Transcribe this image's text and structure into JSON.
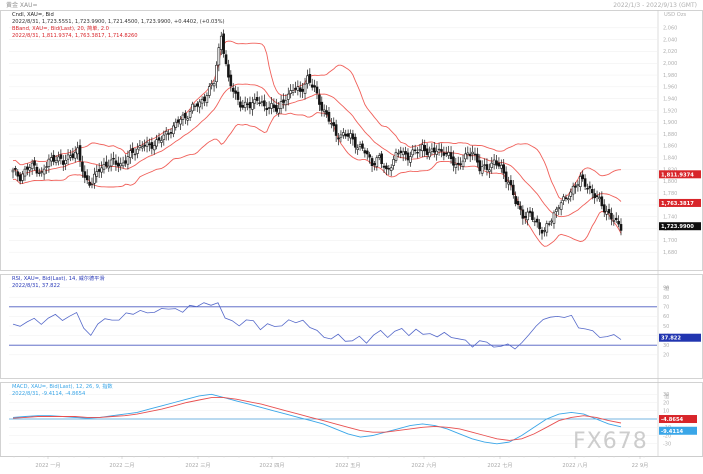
{
  "window": {
    "left_label": "黄金 XAU=",
    "right_label": "2022/1/3 - 2022/9/13 (GMT)"
  },
  "panels": {
    "price": {
      "header_line1": "Cndl, XAU=, Bid",
      "header_line2": "2022/8/31, 1,723.5551, 1,723.9900, 1,721.4500, 1,723.9900, +0.4402, (+0.03%)",
      "header_line3": "BBand, XAU=, Bid(Last), 20, 简单, 2.0",
      "header_line4": "2022/8/31, 1,811.9374, 1,763.3817, 1,714.8260",
      "axis_unit": "USD Ozs",
      "tags": [
        {
          "label": "1,811.9374",
          "value": 1811.9,
          "color": "#d8252a"
        },
        {
          "label": "1,763.3817",
          "value": 1763.4,
          "color": "#d8252a"
        },
        {
          "label": "1,723.9900",
          "value": 1723.99,
          "color": "#101010"
        }
      ]
    },
    "rsi": {
      "header_line1": "RSI, XAU=, Bid(Last), 14, 威尔德平滑",
      "header_line2": "2022/8/31, 37.822",
      "axis_unit": "值",
      "tag": {
        "label": "37.822",
        "value": 37.8,
        "color": "#2135b0"
      }
    },
    "macd": {
      "header_line1": "MACD, XAU=, Bid(Last), 12, 26, 9, 指数",
      "header_line2": "2022/8/31, -9.4114, -4.8654",
      "axis_unit": "值",
      "tags": [
        {
          "label": "-4.8654",
          "value": -4.87,
          "color": "#d8252a"
        },
        {
          "label": "-9.4114",
          "value": -9.41,
          "color": "#3aa6e8"
        }
      ]
    }
  },
  "x_labels": [
    "2022 一月",
    "2022 二月",
    "2022 三月",
    "2022 四月",
    "2022 五月",
    "2022 六月",
    "2022 七月",
    "2022 八月",
    "22 9月"
  ],
  "watermark": "FX678",
  "colors": {
    "candle": "#141414",
    "band": "#f0605a",
    "rsi_line": "#5468c9",
    "rsi_level": "#4a5bc0",
    "macd_line": "#3aa6e8",
    "macd_signal": "#e85050",
    "axis_text": "#b0b0b0"
  },
  "chart_data": [
    {
      "type": "candlestick",
      "x": [
        "2022-01-03",
        "2022-09-01"
      ],
      "y_range": [
        1660,
        2080
      ],
      "y_ticks": [
        2060,
        2040,
        2020,
        2000,
        1980,
        1960,
        1940,
        1920,
        1900,
        1880,
        1860,
        1840,
        1820,
        1800,
        1780,
        1760,
        1740,
        1720,
        1700,
        1680
      ],
      "close_path": [
        [
          0,
          1816
        ],
        [
          3,
          1808
        ],
        [
          6,
          1822
        ],
        [
          9,
          1826
        ],
        [
          12,
          1812
        ],
        [
          15,
          1834
        ],
        [
          18,
          1842
        ],
        [
          21,
          1830
        ],
        [
          24,
          1846
        ],
        [
          27,
          1850
        ],
        [
          30,
          1804
        ],
        [
          33,
          1798
        ],
        [
          36,
          1820
        ],
        [
          39,
          1830
        ],
        [
          42,
          1832
        ],
        [
          45,
          1828
        ],
        [
          48,
          1840
        ],
        [
          51,
          1852
        ],
        [
          54,
          1862
        ],
        [
          57,
          1858
        ],
        [
          60,
          1868
        ],
        [
          63,
          1874
        ],
        [
          66,
          1888
        ],
        [
          69,
          1902
        ],
        [
          72,
          1908
        ],
        [
          75,
          1926
        ],
        [
          78,
          1930
        ],
        [
          81,
          1950
        ],
        [
          84,
          1968
        ],
        [
          87,
          2050
        ],
        [
          90,
          1970
        ],
        [
          93,
          1946
        ],
        [
          96,
          1926
        ],
        [
          99,
          1928
        ],
        [
          102,
          1942
        ],
        [
          105,
          1922
        ],
        [
          108,
          1930
        ],
        [
          111,
          1920
        ],
        [
          114,
          1942
        ],
        [
          117,
          1958
        ],
        [
          120,
          1950
        ],
        [
          123,
          1976
        ],
        [
          126,
          1954
        ],
        [
          129,
          1926
        ],
        [
          132,
          1904
        ],
        [
          135,
          1880
        ],
        [
          138,
          1878
        ],
        [
          141,
          1876
        ],
        [
          144,
          1860
        ],
        [
          147,
          1850
        ],
        [
          150,
          1832
        ],
        [
          153,
          1838
        ],
        [
          156,
          1818
        ],
        [
          159,
          1836
        ],
        [
          162,
          1852
        ],
        [
          165,
          1842
        ],
        [
          168,
          1848
        ],
        [
          171,
          1860
        ],
        [
          174,
          1844
        ],
        [
          177,
          1856
        ],
        [
          180,
          1848
        ],
        [
          183,
          1838
        ],
        [
          186,
          1826
        ],
        [
          189,
          1840
        ],
        [
          192,
          1854
        ],
        [
          195,
          1820
        ],
        [
          198,
          1824
        ],
        [
          201,
          1832
        ],
        [
          204,
          1822
        ],
        [
          207,
          1800
        ],
        [
          210,
          1764
        ],
        [
          213,
          1744
        ],
        [
          216,
          1742
        ],
        [
          219,
          1728
        ],
        [
          222,
          1714
        ],
        [
          225,
          1736
        ],
        [
          228,
          1762
        ],
        [
          231,
          1768
        ],
        [
          234,
          1790
        ],
        [
          237,
          1802
        ],
        [
          240,
          1792
        ],
        [
          243,
          1776
        ],
        [
          246,
          1760
        ],
        [
          249,
          1744
        ],
        [
          252,
          1728
        ],
        [
          254,
          1724
        ]
      ],
      "bollinger": {
        "period": 20,
        "std_dev": 2.0,
        "last": {
          "upper": 1811.9374,
          "middle": 1763.3817,
          "lower": 1714.826
        }
      }
    },
    {
      "type": "line",
      "name": "RSI",
      "y_range": [
        0,
        100
      ],
      "y_ticks": [
        90,
        80,
        70,
        60,
        50,
        40,
        30,
        20
      ],
      "levels": [
        70,
        30
      ],
      "series": [
        {
          "name": "RSI",
          "values": [
            52,
            48,
            56,
            58,
            50,
            60,
            62,
            54,
            62,
            64,
            46,
            42,
            52,
            56,
            58,
            56,
            62,
            64,
            66,
            62,
            66,
            68,
            66,
            70,
            64,
            70,
            72,
            74,
            70,
            76,
            58,
            54,
            52,
            56,
            54,
            48,
            52,
            48,
            52,
            56,
            52,
            58,
            48,
            44,
            40,
            36,
            40,
            36,
            34,
            38,
            34,
            40,
            44,
            40,
            44,
            46,
            42,
            46,
            40,
            44,
            38,
            42,
            40,
            36,
            34,
            30,
            34,
            32,
            30,
            28,
            30,
            28,
            32,
            40,
            52,
            56,
            58,
            62,
            58,
            60,
            50,
            46,
            44,
            40,
            38,
            40,
            37.8
          ]
        }
      ]
    },
    {
      "type": "line",
      "name": "MACD",
      "y_range": [
        -40,
        40
      ],
      "y_ticks": [
        30,
        20,
        10,
        0,
        -10,
        -20,
        -30
      ],
      "series": [
        {
          "name": "MACD",
          "values": [
            2,
            3,
            4,
            4,
            3,
            2,
            1,
            2,
            4,
            6,
            8,
            12,
            16,
            20,
            24,
            28,
            30,
            26,
            22,
            18,
            14,
            10,
            6,
            2,
            -2,
            -6,
            -12,
            -18,
            -22,
            -20,
            -16,
            -12,
            -8,
            -6,
            -8,
            -12,
            -18,
            -24,
            -28,
            -30,
            -28,
            -20,
            -10,
            0,
            6,
            8,
            6,
            0,
            -6,
            -9.4
          ]
        },
        {
          "name": "Signal",
          "values": [
            1,
            2,
            3,
            3,
            3,
            3,
            2,
            2,
            3,
            4,
            6,
            9,
            12,
            16,
            20,
            23,
            26,
            26,
            24,
            21,
            18,
            14,
            10,
            6,
            2,
            -2,
            -6,
            -10,
            -14,
            -16,
            -16,
            -14,
            -12,
            -10,
            -9,
            -10,
            -12,
            -16,
            -20,
            -24,
            -26,
            -24,
            -18,
            -10,
            -2,
            2,
            4,
            2,
            -2,
            -4.9
          ]
        }
      ]
    }
  ]
}
